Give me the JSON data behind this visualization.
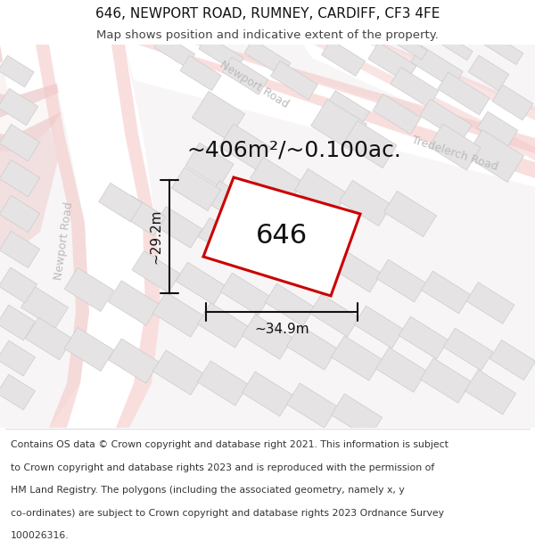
{
  "title": "646, NEWPORT ROAD, RUMNEY, CARDIFF, CF3 4FE",
  "subtitle": "Map shows position and indicative extent of the property.",
  "footer_lines": [
    "Contains OS data © Crown copyright and database right 2021. This information is subject",
    "to Crown copyright and database rights 2023 and is reproduced with the permission of",
    "HM Land Registry. The polygons (including the associated geometry, namely x, y",
    "co-ordinates) are subject to Crown copyright and database rights 2023 Ordnance Survey",
    "100026316."
  ],
  "area_label": "~406m²/~0.100ac.",
  "width_label": "~34.9m",
  "height_label": "~29.2m",
  "plot_label": "646",
  "map_bg": "#f7f5f5",
  "white": "#ffffff",
  "pink_road": "#f5c8c8",
  "building_fill": "#e5e3e3",
  "building_edge": "#cccccc",
  "salmon_area": "#f0d8d8",
  "plot_edge": "#cc0000",
  "dim_color": "#111111",
  "road_label_color": "#bbbbbb",
  "road_label_size": 9,
  "label_fontsize": 11,
  "area_fontsize": 18,
  "plot_fontsize": 22,
  "title_fontsize": 11,
  "subtitle_fontsize": 9.5,
  "footer_fontsize": 7.8
}
